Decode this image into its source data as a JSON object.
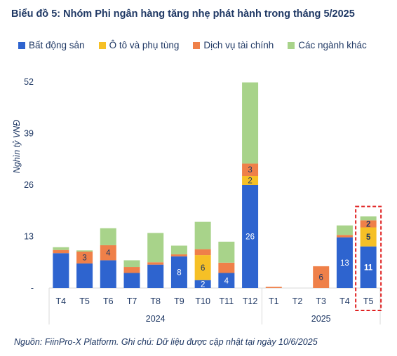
{
  "title": "Biểu đồ 5: Nhóm Phi ngân hàng tăng nhẹ phát hành trong tháng 5/2025",
  "source": "Nguồn: FiinPro-X Platform. Ghi chú: Dữ liệu được cập nhật tại ngày 10/6/2025",
  "colors": {
    "text": "#1f3864",
    "axis": "#d9d9d9",
    "highlight": "#e02020"
  },
  "chart_data": {
    "type": "bar",
    "stacked": true,
    "ylabel": "Nghìn tỷ VNĐ",
    "ylim": [
      0,
      52
    ],
    "yticks": [
      {
        "value": 0,
        "label": "-"
      },
      {
        "value": 13,
        "label": "13"
      },
      {
        "value": 26,
        "label": "26"
      },
      {
        "value": 39,
        "label": "39"
      },
      {
        "value": 52,
        "label": "52"
      }
    ],
    "grid": false,
    "legend_position": "top",
    "categories": [
      "T4",
      "T5",
      "T6",
      "T7",
      "T8",
      "T9",
      "T10",
      "T11",
      "T12",
      "T1",
      "T2",
      "T3",
      "T4",
      "T5"
    ],
    "year_groups": [
      {
        "label": "2024",
        "start": 0,
        "end": 8
      },
      {
        "label": "2025",
        "start": 9,
        "end": 13
      }
    ],
    "highlight_index": 13,
    "series": [
      {
        "name": "Bất động sản",
        "color": "#2e64cf",
        "label_color": "#ffffff",
        "values": [
          8.8,
          6.2,
          7.0,
          3.8,
          5.9,
          8.0,
          2.0,
          3.8,
          26.0,
          0,
          0,
          0,
          12.8,
          10.5
        ],
        "labels": [
          "",
          "",
          "",
          "",
          "",
          "8",
          "2",
          "4",
          "26",
          "",
          "",
          "",
          "13",
          "11"
        ]
      },
      {
        "name": "Ô tô và phụ tùng",
        "color": "#f6c026",
        "label_color": "#1f3864",
        "values": [
          0,
          0,
          0,
          0,
          0,
          0,
          6.3,
          0,
          2.3,
          0,
          0,
          0,
          0,
          4.8
        ],
        "labels": [
          "",
          "",
          "",
          "",
          "",
          "",
          "6",
          "",
          "2",
          "",
          "",
          "",
          "",
          "5"
        ]
      },
      {
        "name": "Dịch vụ tài chính",
        "color": "#ef8049",
        "label_color": "#1f3864",
        "values": [
          0.8,
          3.0,
          3.8,
          1.5,
          0.6,
          0.5,
          1.5,
          2.6,
          3.1,
          0.3,
          0,
          5.5,
          0.6,
          1.8
        ],
        "labels": [
          "",
          "3",
          "4",
          "",
          "",
          "",
          "",
          "",
          "3",
          "",
          "",
          "6",
          "",
          "2"
        ]
      },
      {
        "name": "Các ngành khác",
        "color": "#a8d38a",
        "label_color": "#1f3864",
        "values": [
          0.7,
          0.3,
          4.3,
          1.7,
          7.4,
          2.2,
          6.9,
          5.3,
          20.5,
          0,
          0,
          0,
          2.4,
          1.0
        ],
        "labels": [
          "",
          "",
          "",
          "",
          "",
          "",
          "",
          "",
          "",
          "",
          "",
          "",
          "",
          ""
        ]
      }
    ]
  }
}
